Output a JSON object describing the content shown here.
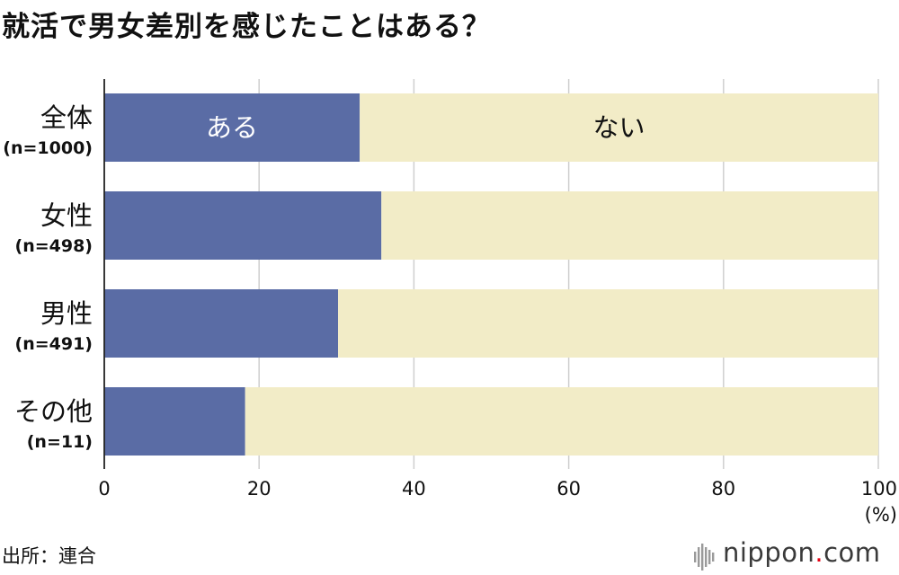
{
  "title": "就活で男女差別を感じたことはある？",
  "source": "出所：連合",
  "brand": {
    "name": "nippon",
    "dot": ".",
    "tld": "com"
  },
  "colors": {
    "yes": "#5a6ca5",
    "no": "#f2ecc7",
    "grid": "#cfcfcf",
    "axis": "#222222"
  },
  "chart_data": {
    "type": "bar",
    "orientation": "horizontal",
    "stacked": true,
    "title": "就活で男女差別を感じたことはある？",
    "categories": [
      {
        "label": "全体",
        "sub": "(n=1000)"
      },
      {
        "label": "女性",
        "sub": "(n=498)"
      },
      {
        "label": "男性",
        "sub": "(n=491)"
      },
      {
        "label": "その他",
        "sub": "(n=11)"
      }
    ],
    "series": [
      {
        "name": "ある",
        "values": [
          33,
          35.8,
          30.2,
          18.2
        ]
      },
      {
        "name": "ない",
        "values": [
          67,
          64.2,
          69.8,
          81.8
        ]
      }
    ],
    "xlim": [
      0,
      100
    ],
    "xticks": [
      "0",
      "20",
      "40",
      "60",
      "80",
      "100"
    ],
    "xunit": "(%)",
    "grid": true,
    "legend": "inside first bar"
  }
}
